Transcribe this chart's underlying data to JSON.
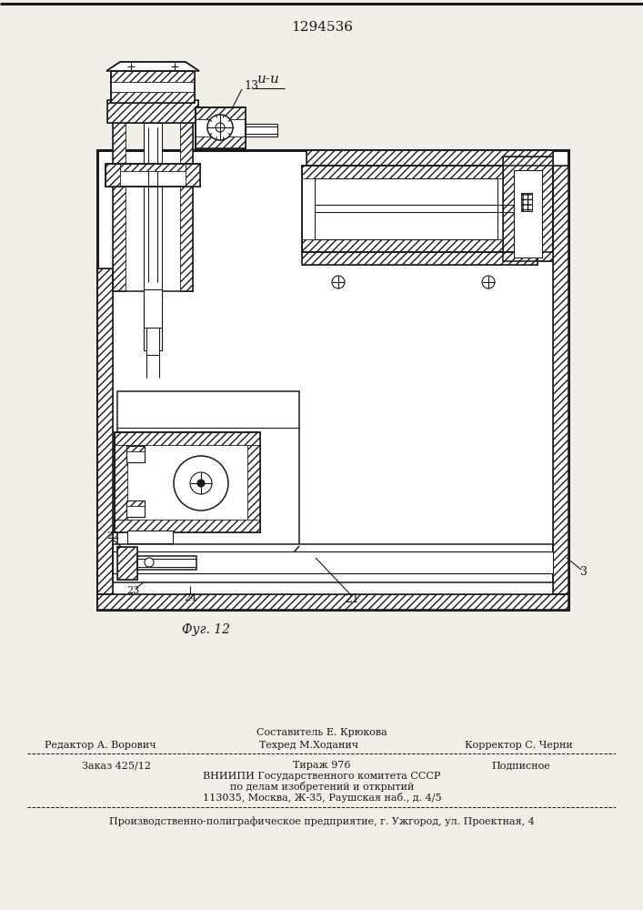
{
  "title_number": "1294536",
  "background_color": "#f2efe9",
  "line_color": "#1a1a1a",
  "footer": {
    "sestavitel": "Составитель Е. Крюкова",
    "redaktor": "Редактор А. Ворович",
    "tehred": "Техред М.Ходанич",
    "korrektor": "Корректор С. Черни",
    "zakaz": "Заказ 425/12",
    "tirazh": "Тираж 976",
    "podpisnoe": "Подписное",
    "vniip1": "ВНИИПИ Государственного комитета СССР",
    "vniip2": "по делам изобретений и открытий",
    "address": "113035, Москва, Ж-35, Раушская наб., д. 4/5",
    "factory": "Производственно-полиграфическое предприятие, г. Ужгород, ул. Проектная, 4"
  }
}
